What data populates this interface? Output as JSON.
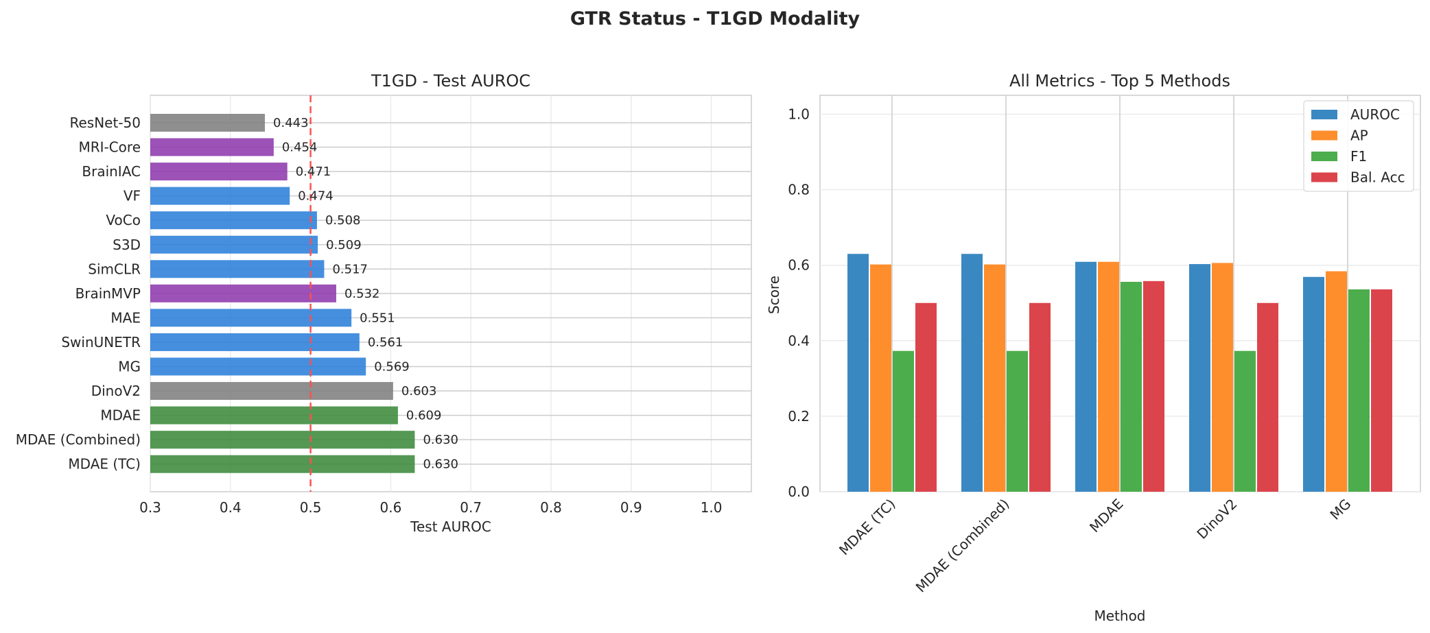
{
  "figure": {
    "title": "GTR Status - T1GD Modality"
  },
  "chart_data": [
    {
      "type": "bar",
      "orientation": "horizontal",
      "title": "T1GD - Test AUROC",
      "xlabel": "Test AUROC",
      "ylabel": "",
      "xlim": [
        0.3,
        1.05
      ],
      "xticks": [
        "0.3",
        "0.4",
        "0.5",
        "0.6",
        "0.7",
        "0.8",
        "0.9",
        "1.0"
      ],
      "grid": true,
      "reference_line": {
        "x": 0.5,
        "color": "#ff5050",
        "style": "dashed"
      },
      "categories": [
        "ResNet-50",
        "MRI-Core",
        "BrainIAC",
        "VF",
        "VoCo",
        "S3D",
        "SimCLR",
        "BrainMVP",
        "MAE",
        "SwinUNETR",
        "MG",
        "DinoV2",
        "MDAE",
        "MDAE (Combined)",
        "MDAE (TC)"
      ],
      "values": [
        0.443,
        0.454,
        0.471,
        0.474,
        0.508,
        0.509,
        0.517,
        0.532,
        0.551,
        0.561,
        0.569,
        0.603,
        0.609,
        0.63,
        0.63
      ],
      "value_labels": [
        "0.443",
        "0.454",
        "0.471",
        "0.474",
        "0.508",
        "0.509",
        "0.517",
        "0.532",
        "0.551",
        "0.561",
        "0.569",
        "0.603",
        "0.609",
        "0.630",
        "0.630"
      ],
      "colors": [
        "#7f7f7f",
        "#8e3aad",
        "#8e3aad",
        "#2b7fd9",
        "#2b7fd9",
        "#2b7fd9",
        "#2b7fd9",
        "#8e3aad",
        "#2b7fd9",
        "#2b7fd9",
        "#2b7fd9",
        "#7f7f7f",
        "#3c8a3c",
        "#3c8a3c",
        "#3c8a3c"
      ]
    },
    {
      "type": "bar",
      "title": "All Metrics - Top 5 Methods",
      "xlabel": "Method",
      "ylabel": "Score",
      "ylim": [
        0,
        1.05
      ],
      "yticks": [
        "0.0",
        "0.2",
        "0.4",
        "0.6",
        "0.8",
        "1.0"
      ],
      "grid": true,
      "legend_position": "top-right",
      "categories": [
        "MDAE (TC)",
        "MDAE (Combined)",
        "MDAE",
        "DinoV2",
        "MG"
      ],
      "series": [
        {
          "name": "AUROC",
          "color": "#3a88c2",
          "values": [
            0.63,
            0.63,
            0.609,
            0.603,
            0.569
          ]
        },
        {
          "name": "AP",
          "color": "#fe8e2c",
          "values": [
            0.602,
            0.602,
            0.609,
            0.606,
            0.584
          ]
        },
        {
          "name": "F1",
          "color": "#4cad4c",
          "values": [
            0.373,
            0.373,
            0.556,
            0.373,
            0.536
          ]
        },
        {
          "name": "Bal. Acc",
          "color": "#dc444b",
          "values": [
            0.5,
            0.5,
            0.558,
            0.5,
            0.536
          ]
        }
      ]
    }
  ]
}
